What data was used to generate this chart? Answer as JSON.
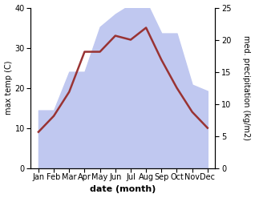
{
  "months": [
    "Jan",
    "Feb",
    "Mar",
    "Apr",
    "May",
    "Jun",
    "Jul",
    "Aug",
    "Sep",
    "Oct",
    "Nov",
    "Dec"
  ],
  "max_temp": [
    9,
    13,
    19,
    29,
    29,
    33,
    32,
    35,
    27,
    20,
    14,
    10
  ],
  "precipitation": [
    9,
    9,
    15,
    15,
    22,
    24,
    25.5,
    26,
    21,
    21,
    13,
    12
  ],
  "temp_color": "#993333",
  "precip_fill_color": "#c0c8f0",
  "bg_color": "#ffffff",
  "xlabel": "date (month)",
  "ylabel_left": "max temp (C)",
  "ylabel_right": "med. precipitation (kg/m2)",
  "ylim_left": [
    0,
    40
  ],
  "ylim_right": [
    0,
    25
  ],
  "yticks_left": [
    0,
    10,
    20,
    30,
    40
  ],
  "yticks_right": [
    0,
    5,
    10,
    15,
    20,
    25
  ],
  "line_width": 1.8,
  "xlabel_fontsize": 8,
  "ylabel_fontsize": 7,
  "tick_fontsize": 7
}
